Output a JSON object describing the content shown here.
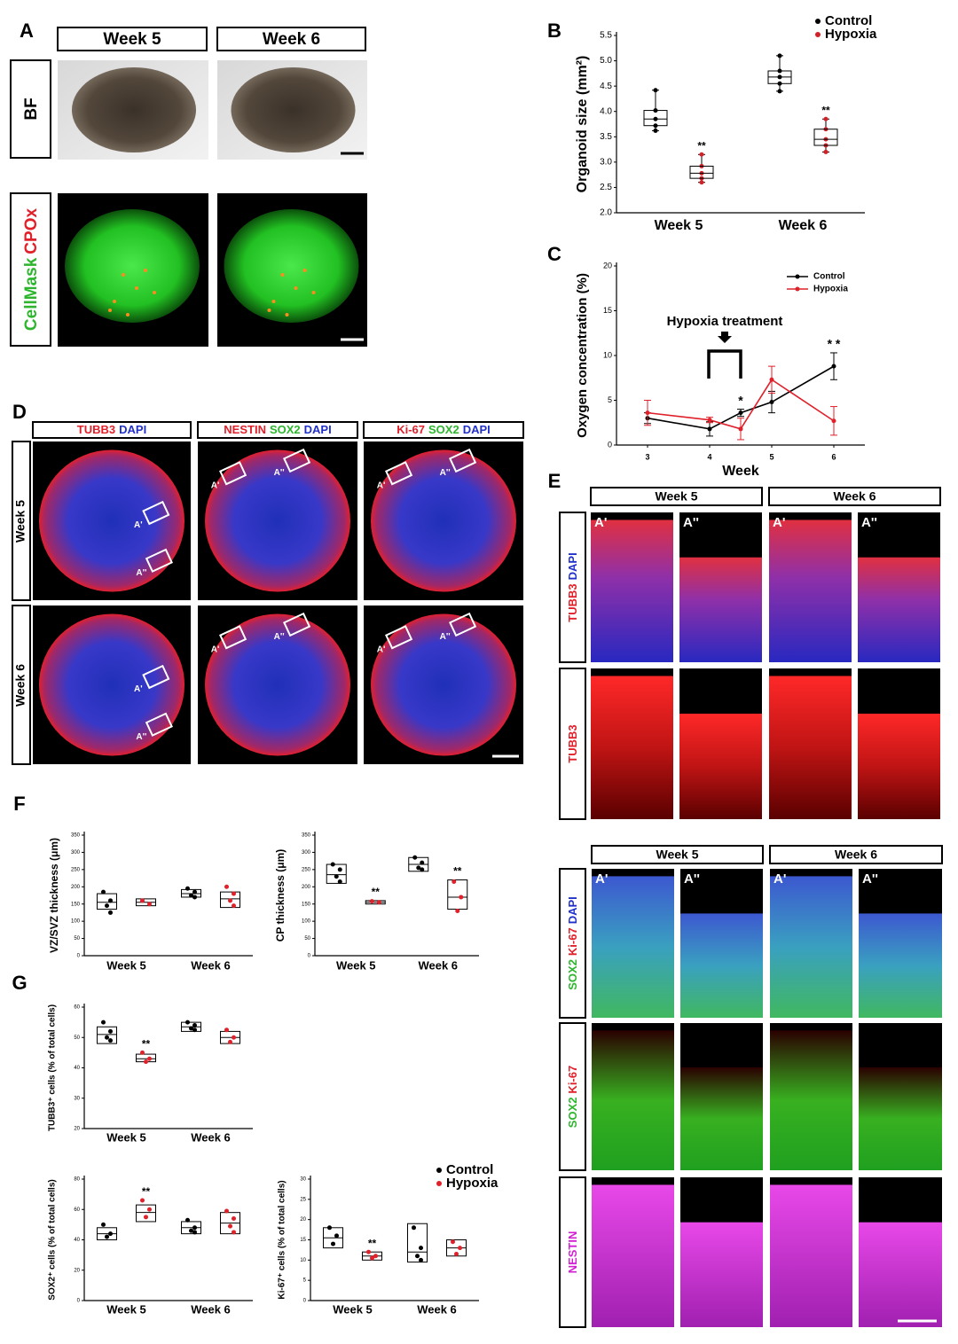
{
  "figure": {
    "panel_letters": [
      "A",
      "B",
      "C",
      "D",
      "E",
      "F",
      "G"
    ],
    "a": {
      "columns": [
        "Week 5",
        "Week 6"
      ],
      "rows": [
        [
          {
            "text": "BF",
            "color": "#000000"
          }
        ],
        [
          {
            "text": "CellMask",
            "color": "#2db62d"
          },
          {
            "text": "CPOx",
            "color": "#e0202a"
          }
        ]
      ]
    },
    "d": {
      "columns": [
        [
          {
            "text": "TUBB3",
            "color": "#e0202a"
          },
          {
            "text": "DAPI",
            "color": "#2030c8"
          }
        ],
        [
          {
            "text": "NESTIN",
            "color": "#e0202a"
          },
          {
            "text": "SOX2",
            "color": "#2db62d"
          },
          {
            "text": "DAPI",
            "color": "#2030c8"
          }
        ],
        [
          {
            "text": "Ki-67",
            "color": "#e0202a"
          },
          {
            "text": "SOX2",
            "color": "#2db62d"
          },
          {
            "text": "DAPI",
            "color": "#2030c8"
          }
        ]
      ],
      "rows": [
        "Week 5",
        "Week 6"
      ],
      "regions": [
        "A'",
        "A''"
      ]
    },
    "e": {
      "columns": [
        "Week 5",
        "Week 6"
      ],
      "regions": [
        "A'",
        "A''"
      ],
      "rows_top": [
        [
          {
            "text": "TUBB3",
            "color": "#e0202a"
          },
          {
            "text": "DAPI",
            "color": "#2030c8"
          }
        ],
        [
          {
            "text": "TUBB3",
            "color": "#e0202a"
          }
        ]
      ],
      "rows_bottom": [
        [
          {
            "text": "SOX2",
            "color": "#2db62d"
          },
          {
            "text": "Ki-67",
            "color": "#e0202a"
          },
          {
            "text": "DAPI",
            "color": "#2030c8"
          }
        ],
        [
          {
            "text": "SOX2",
            "color": "#2db62d"
          },
          {
            "text": "Ki-67",
            "color": "#e0202a"
          }
        ],
        [
          {
            "text": "NESTIN",
            "color": "#d020d0"
          }
        ]
      ]
    }
  },
  "chart_data": [
    {
      "type": "box",
      "ylabel": "Organoid size (mm²)",
      "categories": [
        "Week 5",
        "Week 6"
      ],
      "ylim": [
        2.0,
        5.5
      ],
      "yticks": [
        {
          "value": 2,
          "label": "2.0"
        },
        2.5,
        {
          "value": 3,
          "label": "3.0"
        },
        3.5,
        {
          "value": 4,
          "label": "4.0"
        },
        4.5,
        {
          "value": 5,
          "label": "5.0"
        },
        5.5
      ],
      "legend": "upper right",
      "series": [
        {
          "name": "Control",
          "color": "#000000",
          "values": [
            {
              "min": 3.62,
              "q1": 3.72,
              "median": 3.85,
              "q3": 4.02,
              "max": 4.42
            },
            {
              "min": 4.4,
              "q1": 4.55,
              "median": 4.68,
              "q3": 4.8,
              "max": 5.1
            }
          ]
        },
        {
          "name": "Hypoxia",
          "color": "#d42027",
          "values": [
            {
              "min": 2.6,
              "q1": 2.68,
              "median": 2.78,
              "q3": 2.92,
              "max": 3.15
            },
            {
              "min": 3.2,
              "q1": 3.33,
              "median": 3.45,
              "q3": 3.65,
              "max": 3.85
            }
          ]
        }
      ],
      "annotations": [
        {
          "text": "**",
          "category": 0,
          "series": 1
        },
        {
          "text": "**",
          "category": 1,
          "series": 1
        }
      ]
    },
    {
      "type": "line",
      "ylabel": "Oxygen concentration (%)",
      "xlabel": "Week",
      "x": [
        3,
        4,
        4.5,
        5,
        6
      ],
      "xlim": [
        2.5,
        6.5
      ],
      "xticks": [
        3,
        4,
        5,
        6
      ],
      "ylim": [
        0,
        20
      ],
      "yticks": [
        0,
        5,
        10,
        15,
        20
      ],
      "legend": "upper right",
      "series": [
        {
          "name": "Control",
          "color": "#000000",
          "values": [
            3.0,
            1.8,
            3.6,
            4.8,
            8.8
          ],
          "errors": [
            0.6,
            0.8,
            0.4,
            1.2,
            1.5
          ]
        },
        {
          "name": "Hypoxia",
          "color": "#e0202a",
          "values": [
            3.6,
            2.8,
            1.8,
            7.3,
            2.7
          ],
          "errors": [
            1.4,
            0.3,
            1.2,
            1.5,
            1.6
          ]
        }
      ],
      "annotations": [
        {
          "text": "Hypoxia treatment"
        },
        {
          "text": "*",
          "x": 4.5,
          "series": 0
        },
        {
          "text": "* *",
          "x": 6,
          "series": 0
        }
      ]
    },
    {
      "type": "box",
      "ylabel": "VZ/SVZ thickness (μm)",
      "categories": [
        "Week 5",
        "Week 6"
      ],
      "ylim": [
        0,
        350
      ],
      "yticks": [
        0,
        50,
        100,
        150,
        200,
        250,
        300,
        350
      ],
      "series": [
        {
          "name": "Control",
          "color": "#000000",
          "values": [
            {
              "q1": 135,
              "median": 155,
              "q3": 180,
              "points": [
                185,
                160,
                145,
                125
              ]
            },
            {
              "q1": 170,
              "median": 180,
              "q3": 192,
              "points": [
                195,
                185,
                175,
                170
              ]
            }
          ]
        },
        {
          "name": "Hypoxia",
          "color": "#e0202a",
          "values": [
            {
              "q1": 145,
              "median": 155,
              "q3": 165,
              "points": [
                160,
                150
              ]
            },
            {
              "q1": 140,
              "median": 165,
              "q3": 185,
              "points": [
                200,
                180,
                160,
                145
              ]
            }
          ]
        }
      ]
    },
    {
      "type": "box",
      "ylabel": "CP thickness (μm)",
      "categories": [
        "Week 5",
        "Week 6"
      ],
      "ylim": [
        0,
        350
      ],
      "yticks": [
        0,
        50,
        100,
        150,
        200,
        250,
        300,
        350
      ],
      "series": [
        {
          "name": "Control",
          "color": "#000000",
          "values": [
            {
              "q1": 210,
              "median": 235,
              "q3": 265,
              "points": [
                265,
                250,
                230,
                215
              ]
            },
            {
              "q1": 245,
              "median": 265,
              "q3": 285,
              "points": [
                285,
                270,
                255,
                250
              ]
            }
          ]
        },
        {
          "name": "Hypoxia",
          "color": "#e0202a",
          "values": [
            {
              "q1": 150,
              "median": 155,
              "q3": 160,
              "points": [
                158,
                155
              ]
            },
            {
              "q1": 135,
              "median": 170,
              "q3": 220,
              "points": [
                215,
                170,
                130
              ]
            }
          ]
        }
      ],
      "annotations": [
        {
          "text": "**",
          "category": 0,
          "series": 1
        },
        {
          "text": "**",
          "category": 1,
          "series": 1
        }
      ]
    },
    {
      "type": "box",
      "ylabel": "TUBB3⁺ cells (% of total cells)",
      "categories": [
        "Week 5",
        "Week 6"
      ],
      "ylim": [
        20,
        60
      ],
      "yticks": [
        20,
        30,
        40,
        50,
        60
      ],
      "series": [
        {
          "name": "Control",
          "color": "#000000",
          "values": [
            {
              "q1": 48,
              "median": 51,
              "q3": 53.5,
              "points": [
                55,
                52,
                50,
                49
              ]
            },
            {
              "q1": 52,
              "median": 53.5,
              "q3": 55,
              "points": [
                55,
                54,
                53,
                52.5
              ]
            }
          ]
        },
        {
          "name": "Hypoxia",
          "color": "#e0202a",
          "values": [
            {
              "q1": 42,
              "median": 43,
              "q3": 44.5,
              "points": [
                45,
                43,
                42
              ]
            },
            {
              "q1": 48,
              "median": 50,
              "q3": 52,
              "points": [
                52.5,
                50,
                48.5
              ]
            }
          ]
        }
      ],
      "annotations": [
        {
          "text": "**",
          "category": 0,
          "series": 1
        }
      ]
    },
    {
      "type": "box",
      "ylabel": "SOX2⁺ cells (% of total cells)",
      "categories": [
        "Week 5",
        "Week 6"
      ],
      "ylim": [
        0,
        80
      ],
      "yticks": [
        0,
        20,
        40,
        60,
        80
      ],
      "series": [
        {
          "name": "Control",
          "color": "#000000",
          "values": [
            {
              "q1": 40,
              "median": 44,
              "q3": 48,
              "points": [
                50,
                44,
                42
              ]
            },
            {
              "q1": 44,
              "median": 48,
              "q3": 52,
              "points": [
                53,
                48,
                46,
                45
              ]
            }
          ]
        },
        {
          "name": "Hypoxia",
          "color": "#e0202a",
          "values": [
            {
              "q1": 52,
              "median": 58,
              "q3": 63,
              "points": [
                66,
                60,
                55
              ]
            },
            {
              "q1": 44,
              "median": 51,
              "q3": 58,
              "points": [
                59,
                54,
                49,
                45
              ]
            }
          ]
        }
      ],
      "annotations": [
        {
          "text": "**",
          "category": 0,
          "series": 1
        }
      ]
    },
    {
      "type": "box",
      "ylabel": "Ki-67⁺ cells (% of total cells)",
      "categories": [
        "Week 5",
        "Week 6"
      ],
      "ylim": [
        0,
        30
      ],
      "yticks": [
        0,
        5,
        10,
        15,
        20,
        25,
        30
      ],
      "legend": "upper right",
      "series": [
        {
          "name": "Control",
          "color": "#000000",
          "values": [
            {
              "q1": 13,
              "median": 15.5,
              "q3": 18,
              "points": [
                18,
                16,
                14
              ]
            },
            {
              "q1": 9.5,
              "median": 12,
              "q3": 19,
              "points": [
                18,
                13,
                11,
                10
              ]
            }
          ]
        },
        {
          "name": "Hypoxia",
          "color": "#e0202a",
          "values": [
            {
              "q1": 10,
              "median": 11,
              "q3": 12,
              "points": [
                12,
                11,
                10.5
              ]
            },
            {
              "q1": 11,
              "median": 13,
              "q3": 15,
              "points": [
                14.5,
                13,
                11.5
              ]
            }
          ]
        }
      ],
      "annotations": [
        {
          "text": "**",
          "category": 0,
          "series": 1
        }
      ]
    }
  ]
}
